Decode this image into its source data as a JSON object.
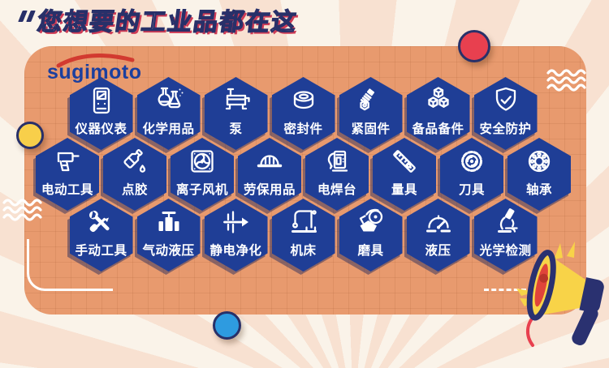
{
  "title": {
    "quote_mark": "“",
    "text": "您想要的工业品都在这"
  },
  "logo": {
    "text": "sugimoto"
  },
  "categories": {
    "rows": [
      {
        "items": [
          {
            "label": "仪器仪表",
            "icon": "instrument-meter-icon"
          },
          {
            "label": "化学用品",
            "icon": "chemistry-flasks-icon"
          },
          {
            "label": "泵",
            "icon": "pump-icon"
          },
          {
            "label": "密封件",
            "icon": "seal-ring-icon"
          },
          {
            "label": "紧固件",
            "icon": "bolt-nut-icon"
          },
          {
            "label": "备品备件",
            "icon": "spare-parts-cubes-icon"
          },
          {
            "label": "安全防护",
            "icon": "shield-check-icon"
          }
        ]
      },
      {
        "items": [
          {
            "label": "电动工具",
            "icon": "electric-drill-icon"
          },
          {
            "label": "点胶",
            "icon": "glue-dispensing-icon"
          },
          {
            "label": "离子风机",
            "icon": "ion-fan-icon"
          },
          {
            "label": "劳保用品",
            "icon": "hard-hat-icon"
          },
          {
            "label": "电焊台",
            "icon": "welding-station-icon"
          },
          {
            "label": "量具",
            "icon": "measuring-tools-icon"
          },
          {
            "label": "刀具",
            "icon": "saw-blade-icon"
          },
          {
            "label": "轴承",
            "icon": "bearing-icon"
          }
        ]
      },
      {
        "items": [
          {
            "label": "手动工具",
            "icon": "hand-tools-icon"
          },
          {
            "label": "气动液压",
            "icon": "pneumatic-valve-icon"
          },
          {
            "label": "静电净化",
            "icon": "static-purifier-icon"
          },
          {
            "label": "机床",
            "icon": "machine-tool-icon"
          },
          {
            "label": "磨具",
            "icon": "grinder-icon"
          },
          {
            "label": "液压",
            "icon": "pressure-gauge-icon"
          },
          {
            "label": "光学检测",
            "icon": "microscope-icon"
          }
        ]
      }
    ]
  },
  "colors": {
    "card_bg": "#e89a6e",
    "hex_blue": "#1f3e96",
    "navy": "#283069",
    "title_fill": "#faf0e0",
    "title_shadow_red": "#cf3b55",
    "logo_blue": "#1b3f9e",
    "logo_swoosh_red": "#d23a30",
    "background_cream": "#faf3e9",
    "background_pink": "#f8e1d1",
    "yellow_dot": "#f8cf4a",
    "red_dot": "#e8404f",
    "blue_dot": "#2e9be0",
    "megaphone_yellow": "#f8d348",
    "megaphone_red": "#e0443a",
    "white": "#ffffff"
  },
  "decorations": {
    "icons": [
      "quote-mark-icon",
      "logo-swoosh-icon",
      "wave-lines-icon",
      "yellow-dot",
      "red-dot",
      "blue-dot",
      "corner-line",
      "dashed-line",
      "megaphone-icon",
      "spark-rays-icon",
      "sound-rays-icon",
      "sound-arc-icon"
    ]
  }
}
